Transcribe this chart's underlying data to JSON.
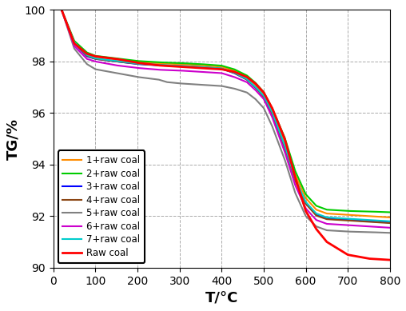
{
  "title": "",
  "xlabel": "T/°C",
  "ylabel": "TG/%",
  "xlim": [
    0,
    800
  ],
  "ylim": [
    90,
    100
  ],
  "xticks": [
    0,
    100,
    200,
    300,
    400,
    500,
    600,
    700,
    800
  ],
  "yticks": [
    90,
    92,
    94,
    96,
    98,
    100
  ],
  "series": [
    {
      "label": "1+raw coal",
      "color": "#FF8C00"
    },
    {
      "label": "2+raw coal",
      "color": "#00CC00"
    },
    {
      "label": "3+raw coal",
      "color": "#0000FF"
    },
    {
      "label": "4+raw coal",
      "color": "#8B4513"
    },
    {
      "label": "5+raw coal",
      "color": "#808080"
    },
    {
      "label": "6+raw coal",
      "color": "#CC00CC"
    },
    {
      "label": "7+raw coal",
      "color": "#00CCCC"
    },
    {
      "label": "Raw coal",
      "color": "#FF0000"
    }
  ],
  "grid_color": "#AAAAAA",
  "grid_linestyle": "--",
  "linewidth": 1.5
}
